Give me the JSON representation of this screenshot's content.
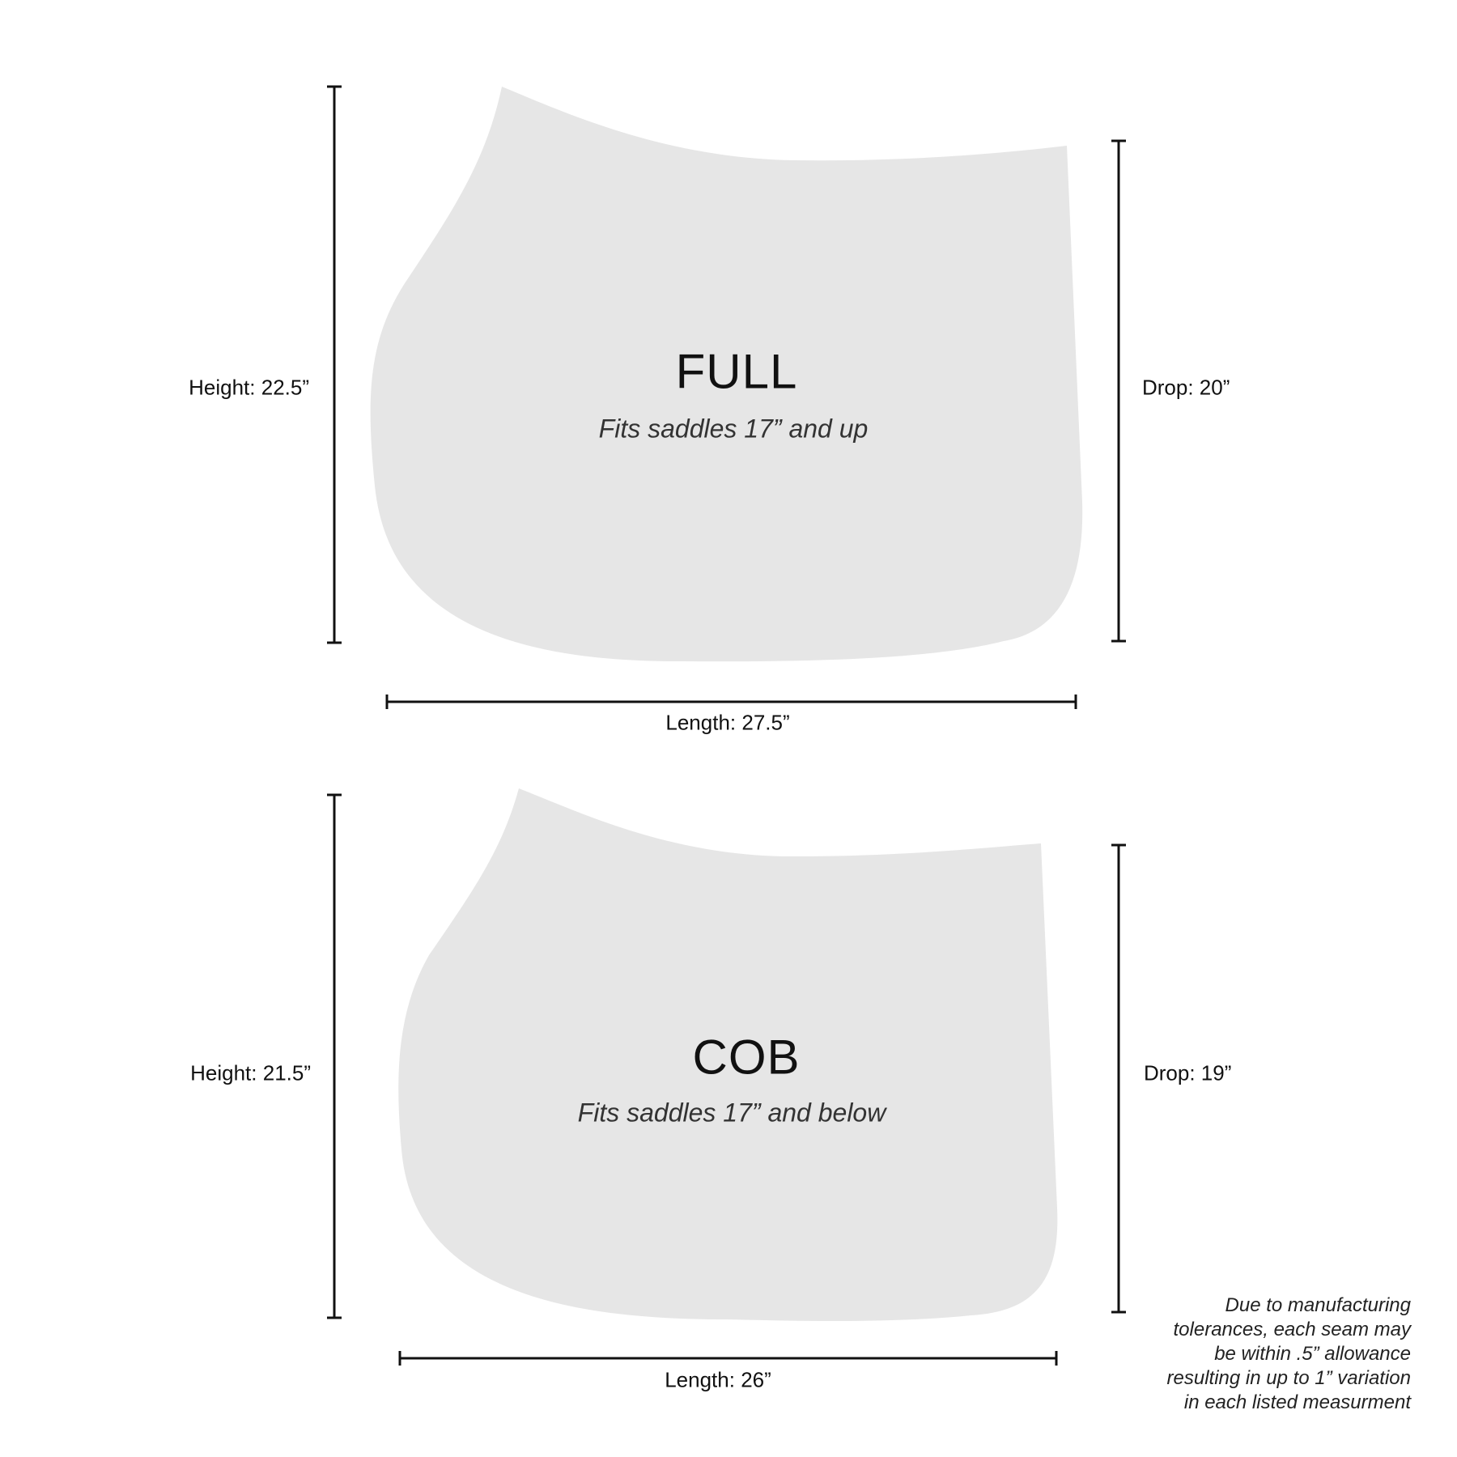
{
  "pad_fill": "#e6e6e6",
  "line_color": "#111111",
  "full": {
    "title": "FULL",
    "subtitle": "Fits saddles 17” and up",
    "height_label": "Height: 22.5”",
    "drop_label": "Drop: 20”",
    "length_label": "Length: 27.5”"
  },
  "cob": {
    "title": "COB",
    "subtitle": "Fits saddles 17” and below",
    "height_label": "Height: 21.5”",
    "drop_label": "Drop: 19”",
    "length_label": "Length: 26”"
  },
  "note": {
    "lines": [
      "Due to manufacturing",
      "tolerances, each seam may",
      "be within .5” allowance",
      "resulting in up to 1” variation",
      "in each listed measurment"
    ]
  }
}
